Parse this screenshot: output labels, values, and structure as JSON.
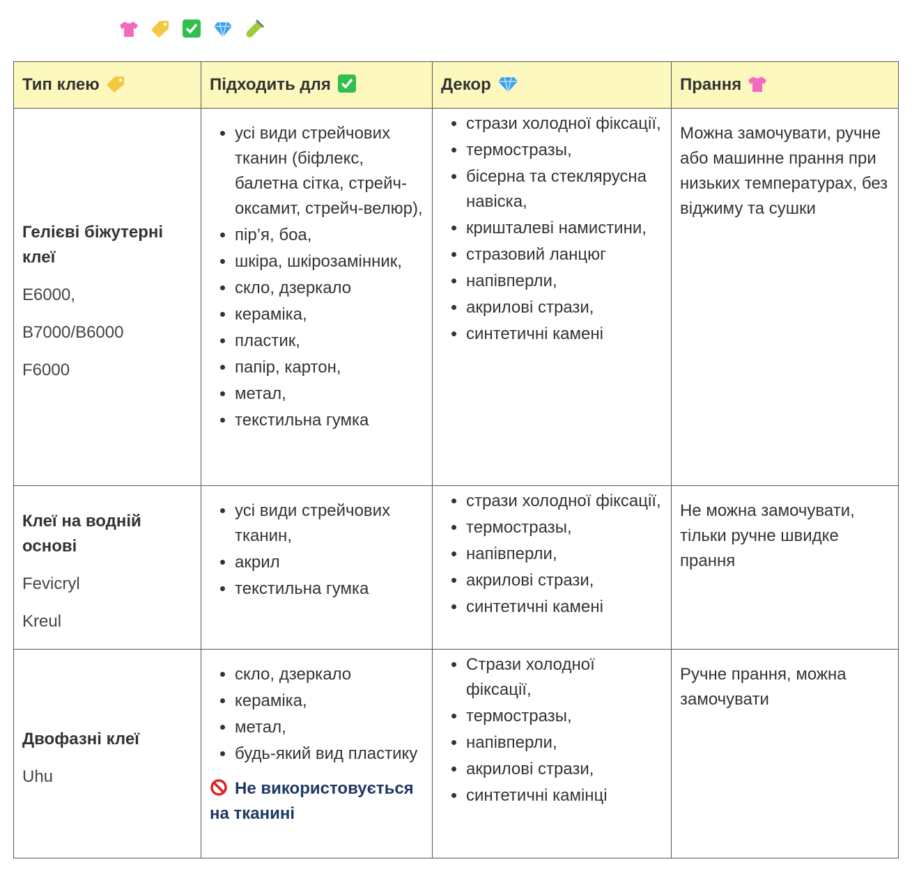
{
  "header": [
    "Тип клею",
    "Підходить для",
    "Декор",
    "Прання"
  ],
  "rows": [
    {
      "name": "Гелієві біжутерні клеї",
      "brands": [
        "E6000,",
        "B7000/B6000",
        "F6000"
      ],
      "suitable": [
        "усі види стрейчових тканин (біфлекс, балетна сітка, стрейч-оксамит, стрейч-велюр),",
        "пір’я, боа,",
        "шкіра, шкірозамінник,",
        "скло, дзеркало",
        "кераміка,",
        "пластик,",
        "папір, картон,",
        "метал,",
        "текстильна гумка"
      ],
      "decor": [
        "стрази холодної фіксації,",
        "термостразы,",
        "бісерна та стеклярусна навіска,",
        "кришталеві намистини,",
        "стразовий ланцюг",
        "напівперли,",
        "акрилові стрази,",
        "синтетичні камені"
      ],
      "washing": "Можна замочувати, ручне або машинне прання при низьких температурах, без віджиму та сушки"
    },
    {
      "name": "Клеї на водній основі",
      "brands": [
        "Fevicryl",
        "Kreul"
      ],
      "suitable": [
        "усі види стрейчових тканин,",
        "акрил",
        "текстильна гумка"
      ],
      "decor": [
        "стрази холодної фіксації,",
        "термостразы,",
        "напівперли,",
        "акрилові стрази,",
        "синтетичні камені"
      ],
      "washing": "Не можна замочувати, тільки ручне швидке прання"
    },
    {
      "name": "Двофазні клеї",
      "brands": [
        "Uhu"
      ],
      "suitable": [
        "скло, дзеркало",
        "кераміка,",
        "метал,",
        "будь-який вид пластику"
      ],
      "warning": "Не використовується на тканині",
      "decor": [
        "Стрази холодної фіксації,",
        "термостразы,",
        "напівперли,",
        "акрилові стрази,",
        "синтетичні камінці"
      ],
      "washing": "Ручне прання, можна замочувати"
    }
  ]
}
